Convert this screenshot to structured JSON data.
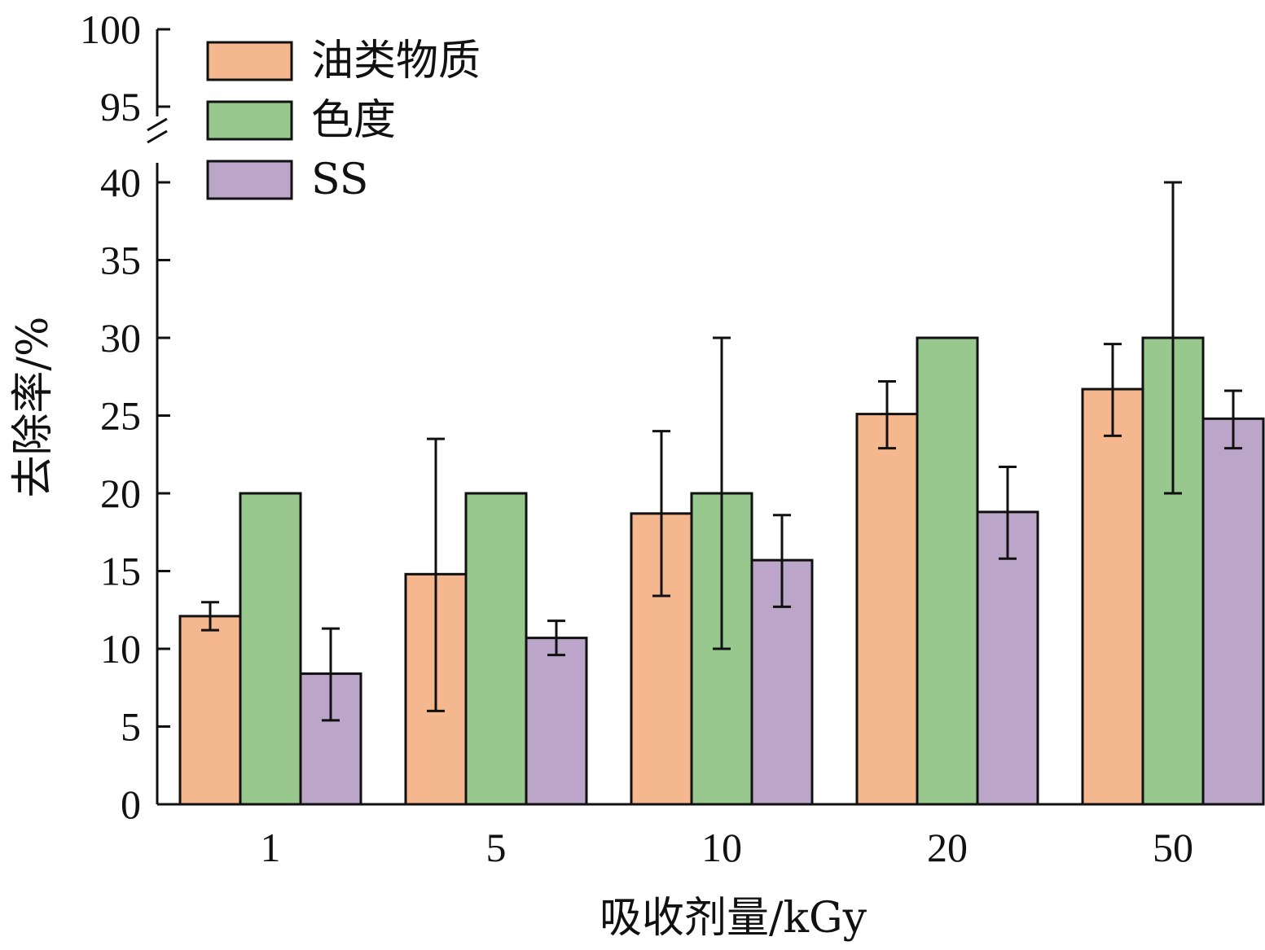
{
  "chart_data": {
    "type": "bar",
    "xlabel": "吸收剂量/kGy",
    "ylabel": "去除率/%",
    "categories": [
      "1",
      "5",
      "10",
      "20",
      "50"
    ],
    "series": [
      {
        "name": "油类物质",
        "color": "#F5B78E",
        "values": [
          12.1,
          14.8,
          18.7,
          25.1,
          26.7
        ],
        "err_low": [
          11.2,
          6.0,
          13.4,
          22.9,
          23.7
        ],
        "err_high": [
          13.0,
          23.5,
          24.0,
          27.2,
          29.6
        ]
      },
      {
        "name": "色度",
        "color": "#98C88E",
        "values": [
          20,
          20,
          20,
          30,
          30
        ],
        "err_low": [
          null,
          null,
          10.0,
          null,
          20.0
        ],
        "err_high": [
          null,
          null,
          30.0,
          null,
          40.0
        ]
      },
      {
        "name": "SS",
        "color": "#BBA5C8",
        "values": [
          8.4,
          10.7,
          15.7,
          18.8,
          24.8
        ],
        "err_low": [
          5.4,
          9.6,
          12.7,
          15.8,
          22.9
        ],
        "err_high": [
          11.3,
          11.8,
          18.6,
          21.7,
          26.6
        ]
      }
    ],
    "yticks_lower": [
      "0",
      "5",
      "10",
      "15",
      "20",
      "25",
      "30",
      "35",
      "40"
    ],
    "yticks_upper": [
      "95",
      "100"
    ],
    "ylim": [
      0,
      100
    ],
    "axis_break": [
      40,
      95
    ],
    "legend_position": "top-left",
    "grid": false
  }
}
